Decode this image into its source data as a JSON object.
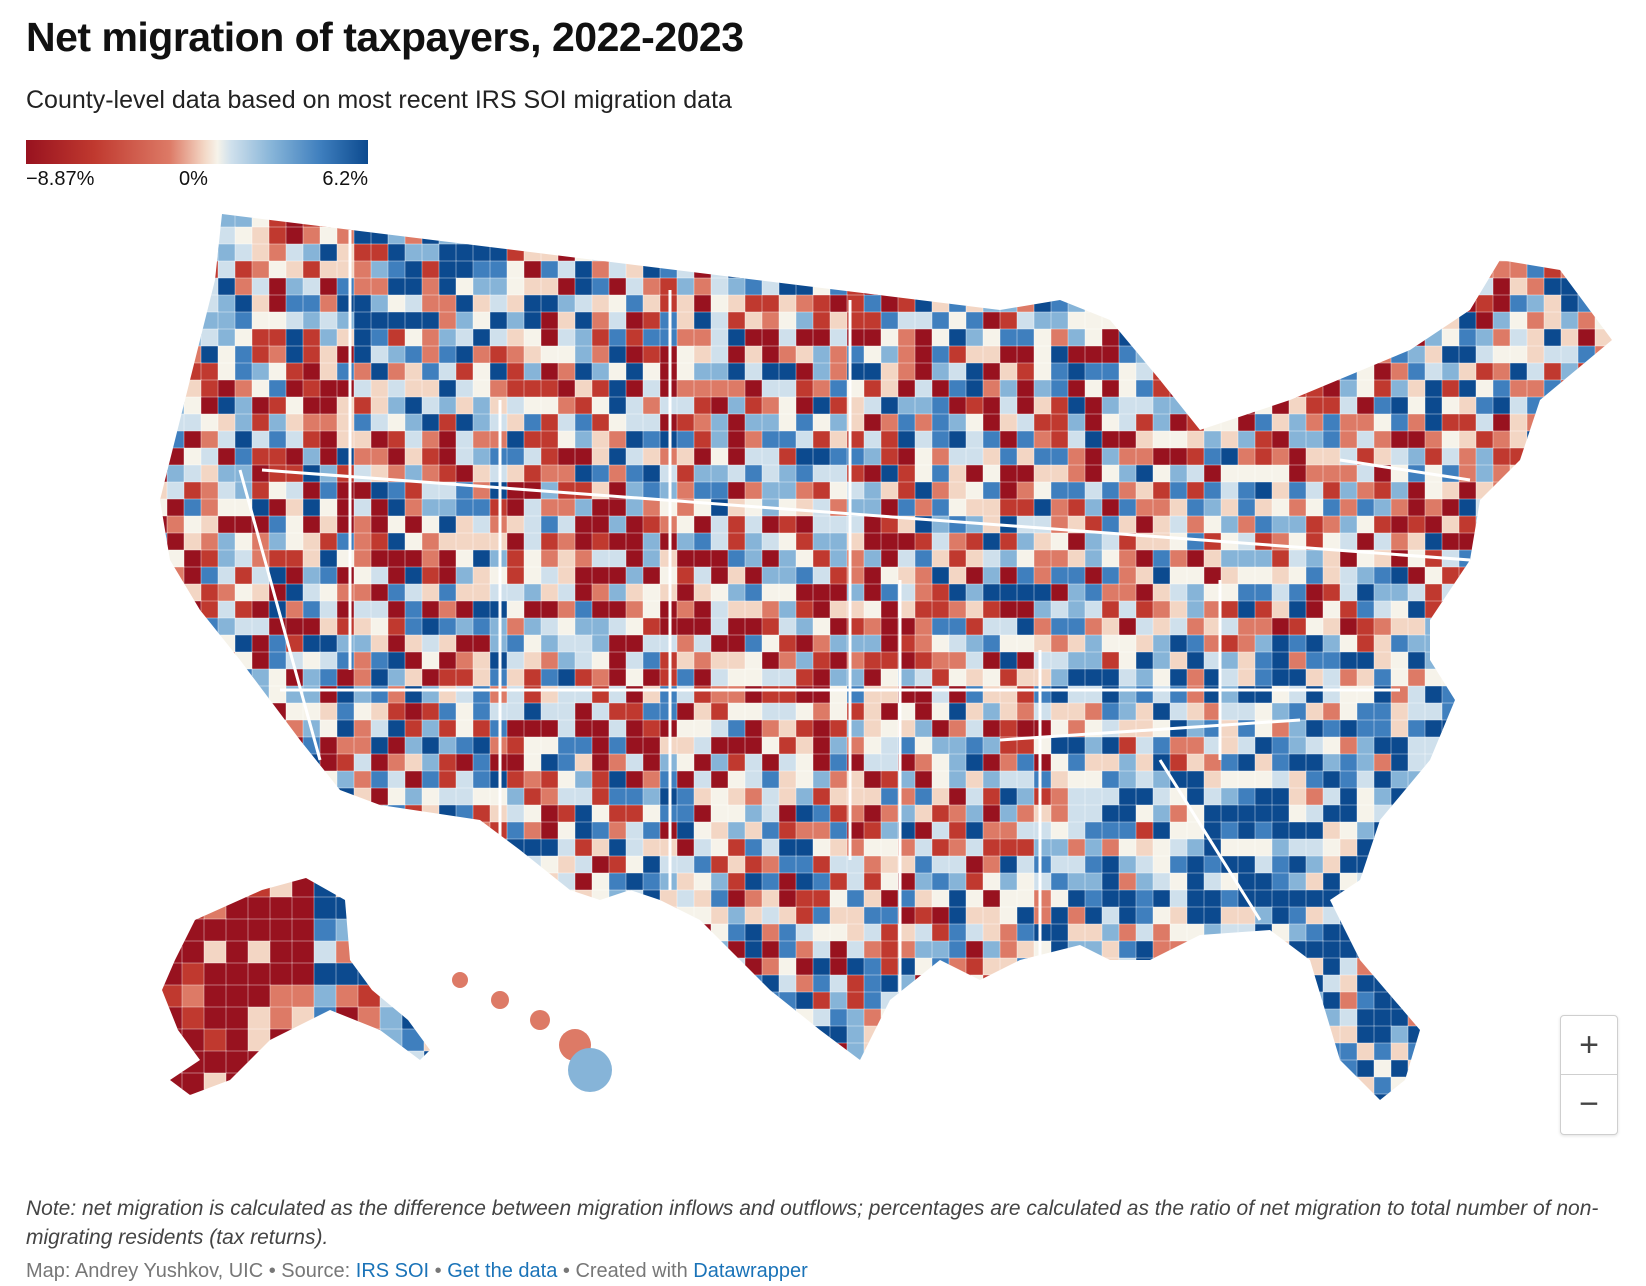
{
  "header": {
    "title": "Net migration of taxpayers, 2022-2023",
    "subtitle": "County-level data based on most recent IRS SOI migration data"
  },
  "legend": {
    "min_label": "−8.87%",
    "mid_label": "0%",
    "max_label": "6.2%",
    "min_value": -8.87,
    "mid_value": 0,
    "max_value": 6.2,
    "colors": [
      "#98121f",
      "#c0392f",
      "#dd7a66",
      "#f3d6c4",
      "#f6f3ea",
      "#cfe0ec",
      "#86b4d8",
      "#3f7fbe",
      "#0c4a8f"
    ]
  },
  "map": {
    "type": "choropleth",
    "geography": "US counties",
    "state_border_color": "#ffffff",
    "background_color": "#ffffff"
  },
  "controls": {
    "zoom_in_label": "+",
    "zoom_out_label": "−"
  },
  "notes": {
    "text": "Note: net migration is calculated as the difference between migration inflows and outflows; percentages are calculated as the ratio of net migration to total number of non-migrating residents (tax returns)."
  },
  "footer": {
    "prefix": "Map: Andrey Yushkov, UIC • Source: ",
    "source_link": "IRS SOI",
    "separator_1": " • ",
    "data_link": "Get the data",
    "separator_2": " • Created with ",
    "tool_link": "Datawrapper",
    "link_color": "#1a73b8"
  }
}
